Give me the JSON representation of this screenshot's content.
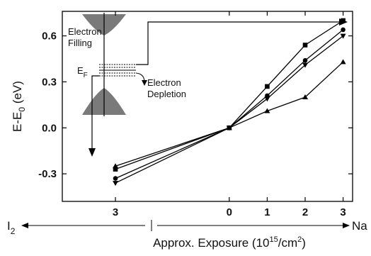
{
  "chart_data": {
    "type": "line",
    "xlabel": "Approx. Exposure (10",
    "xlabel_exp": "15",
    "xlabel_unit": "/cm",
    "xlabel_unit_exp": "2",
    "xlabel_close": ")",
    "ylabel_main": "E-E",
    "ylabel_sub": "0",
    "ylabel_unit": " (eV)",
    "ylim": [
      -0.48,
      0.76
    ],
    "yticks": [
      -0.3,
      0.0,
      0.3,
      0.6
    ],
    "ytick_labels": [
      "-0.3",
      "0.0",
      "0.3",
      "0.6"
    ],
    "x_positions": [
      -3,
      0,
      1,
      2,
      3
    ],
    "x_tick_labels": [
      "3",
      "0",
      "1",
      "2",
      "3"
    ],
    "xlim": [
      -4.4,
      3.25
    ],
    "left_direction_label": "I",
    "left_direction_sub": "2",
    "right_direction_label": "Na",
    "grid": false,
    "series": [
      {
        "marker": "square",
        "x": [
          -3,
          0,
          1,
          2,
          3
        ],
        "values": [
          -0.27,
          0.0,
          0.27,
          0.54,
          0.7
        ]
      },
      {
        "marker": "circle",
        "x": [
          -3,
          0,
          1,
          2,
          3
        ],
        "values": [
          -0.33,
          0.0,
          0.21,
          0.44,
          0.64
        ]
      },
      {
        "marker": "triangle-down",
        "x": [
          -3,
          0,
          1,
          2,
          3
        ],
        "values": [
          -0.36,
          0.0,
          0.19,
          0.41,
          0.6
        ]
      },
      {
        "marker": "triangle-up",
        "x": [
          -3,
          0,
          1,
          2,
          3
        ],
        "values": [
          -0.25,
          0.0,
          0.11,
          0.2,
          0.43
        ]
      }
    ],
    "inset": {
      "electron_filling": [
        "Electron",
        "Filling"
      ],
      "fermi_label": "E",
      "fermi_sub": "F",
      "electron_depletion": [
        "Electron",
        "Depletion"
      ]
    }
  }
}
